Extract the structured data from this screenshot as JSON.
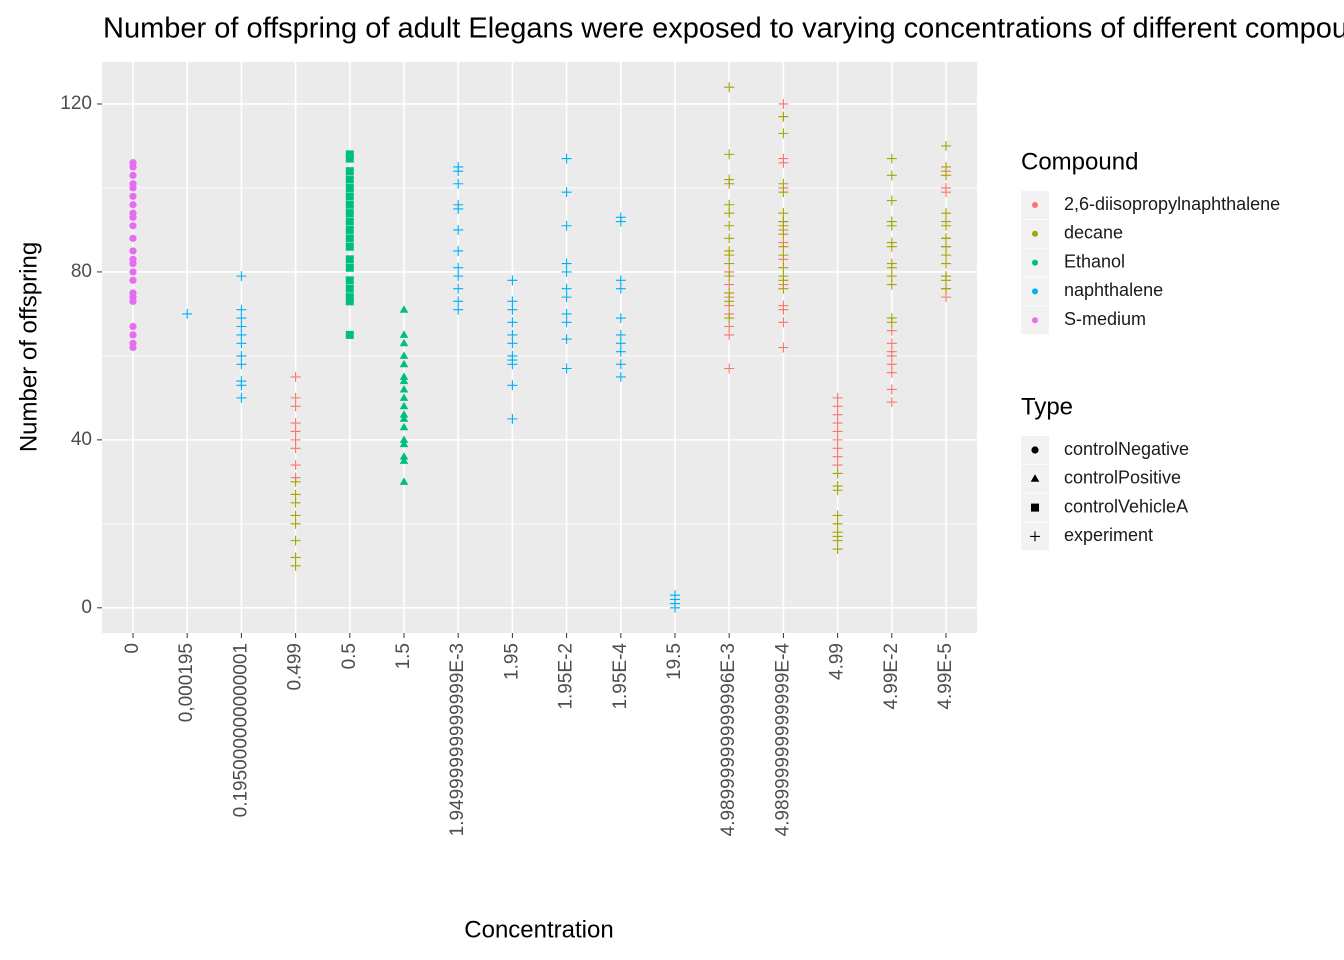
{
  "chart_data": {
    "type": "scatter",
    "title": "Number of offspring of adult Elegans were exposed to varying concentrations of different compounds",
    "x_label": "Concentration",
    "y_label": "Number of offspring",
    "categories": [
      "0",
      "0,000195",
      "0.195000000000001",
      "0.499",
      "0.5",
      "1.5",
      "1.94999999999999E-3",
      "1.95",
      "1.95E-2",
      "1.95E-4",
      "19.5",
      "4.98999999999996E-3",
      "4.98999999999999E-4",
      "4.99",
      "4.99E-2",
      "4.99E-5"
    ],
    "ylim": [
      -6,
      130
    ],
    "yticks": [
      0,
      40,
      80,
      120
    ],
    "grid": true,
    "color_legend_title": "Compound",
    "shape_legend_title": "Type",
    "shape_types": [
      "controlNegative",
      "controlPositive",
      "controlVehicleA",
      "experiment"
    ],
    "shape_marks": [
      "circle",
      "triangle",
      "square",
      "plus"
    ],
    "series": [
      {
        "name": "2,6-diisopropylnaphthalene",
        "color": "#F8766D",
        "x": [
          "0.499",
          "0.499",
          "0.499",
          "0.499",
          "0.499",
          "0.499",
          "0.499",
          "0.499",
          "0.499",
          "4.98999999999996E-3",
          "4.98999999999996E-3",
          "4.98999999999996E-3",
          "4.98999999999996E-3",
          "4.98999999999996E-3",
          "4.98999999999996E-3",
          "4.98999999999996E-3",
          "4.98999999999996E-3",
          "4.98999999999999E-4",
          "4.98999999999999E-4",
          "4.98999999999999E-4",
          "4.98999999999999E-4",
          "4.98999999999999E-4",
          "4.98999999999999E-4",
          "4.98999999999999E-4",
          "4.98999999999999E-4",
          "4.98999999999999E-4",
          "4.98999999999999E-4",
          "4.98999999999999E-4",
          "4.98999999999999E-4",
          "4.98999999999999E-4",
          "4.98999999999999E-4",
          "4.99",
          "4.99",
          "4.99",
          "4.99",
          "4.99",
          "4.99",
          "4.99",
          "4.99",
          "4.99",
          "4.99E-2",
          "4.99E-2",
          "4.99E-2",
          "4.99E-2",
          "4.99E-2",
          "4.99E-2",
          "4.99E-2",
          "4.99E-2",
          "4.99E-5",
          "4.99E-5",
          "4.99E-5",
          "4.99E-5",
          "4.99E-5",
          "4.99E-5",
          "4.99E-5",
          "4.99E-5"
        ],
        "values": [
          55,
          50,
          48,
          44,
          42,
          40,
          38,
          34,
          31,
          80,
          77,
          74,
          72,
          70,
          67,
          65,
          57,
          120,
          117,
          107,
          106,
          100,
          92,
          90,
          87,
          83,
          77,
          72,
          71,
          68,
          62,
          50,
          48,
          46,
          44,
          42,
          40,
          38,
          36,
          34,
          66,
          63,
          61,
          60,
          58,
          56,
          52,
          49,
          104,
          100,
          99,
          88,
          86,
          79,
          76,
          74
        ],
        "types": [
          "experiment",
          "experiment",
          "experiment",
          "experiment",
          "experiment",
          "experiment",
          "experiment",
          "experiment",
          "experiment",
          "experiment",
          "experiment",
          "experiment",
          "experiment",
          "experiment",
          "experiment",
          "experiment",
          "experiment",
          "experiment",
          "experiment",
          "experiment",
          "experiment",
          "experiment",
          "experiment",
          "experiment",
          "experiment",
          "experiment",
          "experiment",
          "experiment",
          "experiment",
          "experiment",
          "experiment",
          "experiment",
          "experiment",
          "experiment",
          "experiment",
          "experiment",
          "experiment",
          "experiment",
          "experiment",
          "experiment",
          "experiment",
          "experiment",
          "experiment",
          "experiment",
          "experiment",
          "experiment",
          "experiment",
          "experiment",
          "experiment",
          "experiment",
          "experiment",
          "experiment",
          "experiment",
          "experiment",
          "experiment",
          "experiment"
        ]
      },
      {
        "name": "decane",
        "color": "#A3A500",
        "x": [
          "0.499",
          "0.499",
          "0.499",
          "0.499",
          "0.499",
          "0.499",
          "0.499",
          "0.499",
          "4.98999999999996E-3",
          "4.98999999999996E-3",
          "4.98999999999996E-3",
          "4.98999999999996E-3",
          "4.98999999999996E-3",
          "4.98999999999996E-3",
          "4.98999999999996E-3",
          "4.98999999999996E-3",
          "4.98999999999996E-3",
          "4.98999999999996E-3",
          "4.98999999999996E-3",
          "4.98999999999996E-3",
          "4.98999999999996E-3",
          "4.98999999999996E-3",
          "4.98999999999996E-3",
          "4.98999999999999E-4",
          "4.98999999999999E-4",
          "4.98999999999999E-4",
          "4.98999999999999E-4",
          "4.98999999999999E-4",
          "4.98999999999999E-4",
          "4.98999999999999E-4",
          "4.98999999999999E-4",
          "4.98999999999999E-4",
          "4.98999999999999E-4",
          "4.98999999999999E-4",
          "4.98999999999999E-4",
          "4.98999999999999E-4",
          "4.98999999999999E-4",
          "4.99",
          "4.99",
          "4.99",
          "4.99",
          "4.99",
          "4.99",
          "4.99",
          "4.99",
          "4.99",
          "4.99E-2",
          "4.99E-2",
          "4.99E-2",
          "4.99E-2",
          "4.99E-2",
          "4.99E-2",
          "4.99E-2",
          "4.99E-2",
          "4.99E-2",
          "4.99E-2",
          "4.99E-2",
          "4.99E-2",
          "4.99E-2",
          "4.99E-5",
          "4.99E-5",
          "4.99E-5",
          "4.99E-5",
          "4.99E-5",
          "4.99E-5",
          "4.99E-5",
          "4.99E-5",
          "4.99E-5",
          "4.99E-5",
          "4.99E-5",
          "4.99E-5",
          "4.99E-5"
        ],
        "values": [
          30,
          27,
          25,
          22,
          20,
          16,
          12,
          10,
          124,
          108,
          102,
          101,
          96,
          94,
          91,
          88,
          85,
          84,
          82,
          79,
          75,
          73,
          69,
          117,
          113,
          101,
          99,
          94,
          92,
          91,
          89,
          86,
          84,
          81,
          79,
          78,
          76,
          32,
          29,
          28,
          22,
          20,
          18,
          17,
          16,
          14,
          107,
          103,
          97,
          92,
          91,
          87,
          86,
          82,
          81,
          79,
          77,
          69,
          68,
          110,
          105,
          103,
          94,
          92,
          91,
          88,
          86,
          84,
          82,
          79,
          78,
          76
        ],
        "types": [
          "experiment",
          "experiment",
          "experiment",
          "experiment",
          "experiment",
          "experiment",
          "experiment",
          "experiment",
          "experiment",
          "experiment",
          "experiment",
          "experiment",
          "experiment",
          "experiment",
          "experiment",
          "experiment",
          "experiment",
          "experiment",
          "experiment",
          "experiment",
          "experiment",
          "experiment",
          "experiment",
          "experiment",
          "experiment",
          "experiment",
          "experiment",
          "experiment",
          "experiment",
          "experiment",
          "experiment",
          "experiment",
          "experiment",
          "experiment",
          "experiment",
          "experiment",
          "experiment",
          "experiment",
          "experiment",
          "experiment",
          "experiment",
          "experiment",
          "experiment",
          "experiment",
          "experiment",
          "experiment",
          "experiment",
          "experiment",
          "experiment",
          "experiment",
          "experiment",
          "experiment",
          "experiment",
          "experiment",
          "experiment",
          "experiment",
          "experiment",
          "experiment",
          "experiment",
          "experiment",
          "experiment",
          "experiment",
          "experiment",
          "experiment",
          "experiment",
          "experiment",
          "experiment",
          "experiment",
          "experiment",
          "experiment",
          "experiment",
          "experiment",
          "experiment"
        ]
      },
      {
        "name": "Ethanol",
        "color": "#00BF7D",
        "x": [
          "0.5",
          "0.5",
          "0.5",
          "0.5",
          "0.5",
          "0.5",
          "0.5",
          "0.5",
          "0.5",
          "0.5",
          "0.5",
          "0.5",
          "0.5",
          "0.5",
          "0.5",
          "0.5",
          "0.5",
          "0.5",
          "0.5",
          "1.5",
          "1.5",
          "1.5",
          "1.5",
          "1.5",
          "1.5",
          "1.5",
          "1.5",
          "1.5",
          "1.5",
          "1.5",
          "1.5",
          "1.5",
          "1.5",
          "1.5",
          "1.5",
          "1.5",
          "1.5"
        ],
        "values": [
          108,
          107,
          104,
          102,
          100,
          98,
          96,
          94,
          92,
          90,
          88,
          86,
          83,
          81,
          78,
          76,
          74,
          73,
          65,
          71,
          65,
          63,
          60,
          58,
          55,
          54,
          52,
          50,
          48,
          46,
          45,
          43,
          40,
          39,
          36,
          35,
          30
        ],
        "types": [
          "controlVehicleA",
          "controlVehicleA",
          "controlVehicleA",
          "controlVehicleA",
          "controlVehicleA",
          "controlVehicleA",
          "controlVehicleA",
          "controlVehicleA",
          "controlVehicleA",
          "controlVehicleA",
          "controlVehicleA",
          "controlVehicleA",
          "controlVehicleA",
          "controlVehicleA",
          "controlVehicleA",
          "controlVehicleA",
          "controlVehicleA",
          "controlVehicleA",
          "controlVehicleA",
          "controlPositive",
          "controlPositive",
          "controlPositive",
          "controlPositive",
          "controlPositive",
          "controlPositive",
          "controlPositive",
          "controlPositive",
          "controlPositive",
          "controlPositive",
          "controlPositive",
          "controlPositive",
          "controlPositive",
          "controlPositive",
          "controlPositive",
          "controlPositive",
          "controlPositive",
          "controlPositive"
        ]
      },
      {
        "name": "naphthalene",
        "color": "#00B0F6",
        "x": [
          "0,000195",
          "0.195000000000001",
          "0.195000000000001",
          "0.195000000000001",
          "0.195000000000001",
          "0.195000000000001",
          "0.195000000000001",
          "0.195000000000001",
          "0.195000000000001",
          "0.195000000000001",
          "0.195000000000001",
          "0.195000000000001",
          "1.94999999999999E-3",
          "1.94999999999999E-3",
          "1.94999999999999E-3",
          "1.94999999999999E-3",
          "1.94999999999999E-3",
          "1.94999999999999E-3",
          "1.94999999999999E-3",
          "1.94999999999999E-3",
          "1.94999999999999E-3",
          "1.94999999999999E-3",
          "1.94999999999999E-3",
          "1.94999999999999E-3",
          "1.95",
          "1.95",
          "1.95",
          "1.95",
          "1.95",
          "1.95",
          "1.95",
          "1.95",
          "1.95",
          "1.95",
          "1.95",
          "1.95E-2",
          "1.95E-2",
          "1.95E-2",
          "1.95E-2",
          "1.95E-2",
          "1.95E-2",
          "1.95E-2",
          "1.95E-2",
          "1.95E-2",
          "1.95E-2",
          "1.95E-2",
          "1.95E-4",
          "1.95E-4",
          "1.95E-4",
          "1.95E-4",
          "1.95E-4",
          "1.95E-4",
          "1.95E-4",
          "1.95E-4",
          "1.95E-4",
          "1.95E-4",
          "19.5",
          "19.5",
          "19.5",
          "19.5"
        ],
        "values": [
          70,
          79,
          71,
          69,
          67,
          65,
          63,
          60,
          58,
          54,
          53,
          50,
          105,
          104,
          101,
          96,
          95,
          90,
          85,
          81,
          79,
          76,
          73,
          71,
          78,
          73,
          71,
          68,
          65,
          63,
          60,
          59,
          58,
          53,
          45,
          107,
          99,
          91,
          82,
          80,
          76,
          74,
          70,
          68,
          64,
          57,
          93,
          92,
          78,
          76,
          69,
          65,
          63,
          61,
          58,
          55,
          3,
          2,
          1,
          0
        ],
        "types": [
          "experiment",
          "experiment",
          "experiment",
          "experiment",
          "experiment",
          "experiment",
          "experiment",
          "experiment",
          "experiment",
          "experiment",
          "experiment",
          "experiment",
          "experiment",
          "experiment",
          "experiment",
          "experiment",
          "experiment",
          "experiment",
          "experiment",
          "experiment",
          "experiment",
          "experiment",
          "experiment",
          "experiment",
          "experiment",
          "experiment",
          "experiment",
          "experiment",
          "experiment",
          "experiment",
          "experiment",
          "experiment",
          "experiment",
          "experiment",
          "experiment",
          "experiment",
          "experiment",
          "experiment",
          "experiment",
          "experiment",
          "experiment",
          "experiment",
          "experiment",
          "experiment",
          "experiment",
          "experiment",
          "experiment",
          "experiment",
          "experiment",
          "experiment",
          "experiment",
          "experiment",
          "experiment",
          "experiment",
          "experiment",
          "experiment",
          "experiment",
          "experiment",
          "experiment",
          "experiment"
        ]
      },
      {
        "name": "S-medium",
        "color": "#E76BF3",
        "x": [
          "0",
          "0",
          "0",
          "0",
          "0",
          "0",
          "0",
          "0",
          "0",
          "0",
          "0",
          "0",
          "0",
          "0",
          "0",
          "0",
          "0",
          "0",
          "0",
          "0",
          "0",
          "0",
          "0"
        ],
        "values": [
          106,
          105,
          103,
          101,
          100,
          98,
          96,
          94,
          93,
          91,
          88,
          85,
          83,
          82,
          80,
          78,
          75,
          74,
          73,
          67,
          65,
          63,
          62
        ],
        "types": [
          "controlNegative",
          "controlNegative",
          "controlNegative",
          "controlNegative",
          "controlNegative",
          "controlNegative",
          "controlNegative",
          "controlNegative",
          "controlNegative",
          "controlNegative",
          "controlNegative",
          "controlNegative",
          "controlNegative",
          "controlNegative",
          "controlNegative",
          "controlNegative",
          "controlNegative",
          "controlNegative",
          "controlNegative",
          "controlNegative",
          "controlNegative",
          "controlNegative",
          "controlNegative"
        ]
      }
    ]
  }
}
